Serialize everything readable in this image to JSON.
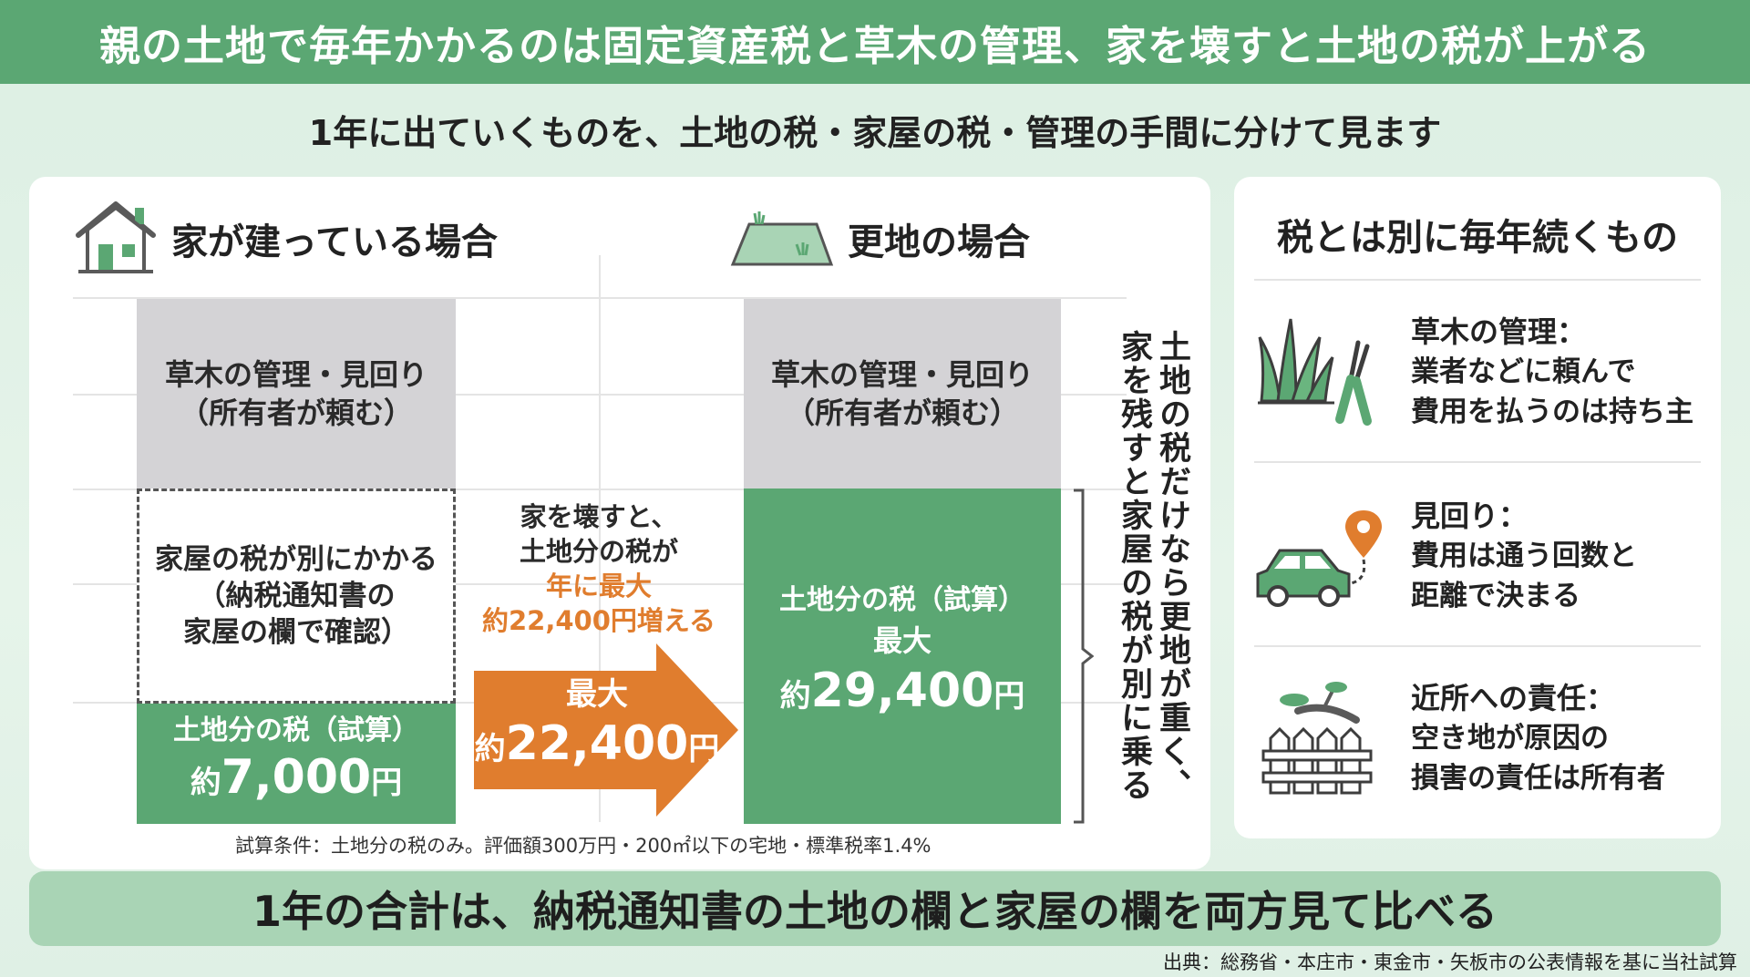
{
  "title": "親の土地で毎年かかるのは固定資産税と草木の管理、家を壊すと土地の税が上がる",
  "subtitle": "1年に出ていくものを、土地の税・家屋の税・管理の手間に分けて見ます",
  "left": {
    "house_case": {
      "heading": "家が建っている場合",
      "management_line1": "草木の管理・見回り",
      "management_line2": "（所有者が頼む）",
      "building_tax_line1": "家屋の税が別にかかる",
      "building_tax_line2": "（納税通知書の",
      "building_tax_line3": "家屋の欄で確認）",
      "land_tax_label": "土地分の税（試算）",
      "land_tax_prefix": "約",
      "land_tax_amount": "7,000",
      "land_tax_unit": "円"
    },
    "arrow": {
      "note_line1": "家を壊すと、",
      "note_line2": "土地分の税が",
      "note_line3": "年に最大",
      "note_line4": "約22,400円増える",
      "label": "最大",
      "prefix": "約",
      "amount": "22,400",
      "unit": "円"
    },
    "vacant_case": {
      "heading": "更地の場合",
      "management_line1": "草木の管理・見回り",
      "management_line2": "（所有者が頼む）",
      "land_tax_label": "土地分の税（試算）",
      "land_tax_max": "最大",
      "land_tax_prefix": "約",
      "land_tax_amount": "29,400",
      "land_tax_unit": "円"
    },
    "vertical_note_1": "土地の税だけなら更地が重く、",
    "vertical_note_2": "家を残すと家屋の税が別に乗る",
    "conditions": "試算条件：土地分の税のみ。評価額300万円・200㎡以下の宅地・標準税率1.4%"
  },
  "right": {
    "title": "税とは別に毎年続くもの",
    "items": [
      {
        "icon": "grass-shears-icon",
        "title": "草木の管理：",
        "line1": "業者などに頼んで",
        "line2": "費用を払うのは持ち主"
      },
      {
        "icon": "car-location-icon",
        "title": "見回り：",
        "line1": "費用は通う回数と",
        "line2": "距離で決まる"
      },
      {
        "icon": "fence-branch-icon",
        "title": "近所への責任：",
        "line1": "空き地が原因の",
        "line2": "損害の責任は所有者"
      }
    ]
  },
  "bottom": "1年の合計は、納税通知書の土地の欄と家屋の欄を両方見て比べる",
  "source": "出典：総務省・本庄市・東金市・矢板市の公表情報を基に当社試算",
  "colors": {
    "green": "#5ba773",
    "orange": "#e07d2e",
    "gray": "#d4d3d6",
    "light_green": "#a9d4b5"
  }
}
